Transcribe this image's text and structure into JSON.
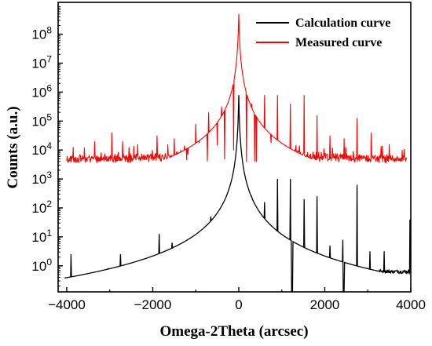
{
  "chart_data": {
    "type": "line",
    "xlabel": "Omega-2Theta (arcsec)",
    "ylabel": "Counts (a.u.)",
    "xlim": [
      -4200,
      4000
    ],
    "ylim_log10": [
      -0.9,
      9.1
    ],
    "y_scale": "log",
    "grid": false,
    "legend_position": "top-right",
    "x_ticks": [
      -4000,
      -2000,
      0,
      2000,
      4000
    ],
    "x_tick_labels": [
      "−4000",
      "−2000",
      "0",
      "2000",
      "4000"
    ],
    "y_ticks": [
      {
        "exp": 0,
        "base": "10",
        "sup": "0"
      },
      {
        "exp": 1,
        "base": "10",
        "sup": "1"
      },
      {
        "exp": 2,
        "base": "10",
        "sup": "2"
      },
      {
        "exp": 3,
        "base": "10",
        "sup": "3"
      },
      {
        "exp": 4,
        "base": "10",
        "sup": "4"
      },
      {
        "exp": 5,
        "base": "10",
        "sup": "5"
      },
      {
        "exp": 6,
        "base": "10",
        "sup": "6"
      },
      {
        "exp": 7,
        "base": "10",
        "sup": "7"
      },
      {
        "exp": 8,
        "base": "10",
        "sup": "8"
      }
    ],
    "series": [
      {
        "name": "Calculation curve",
        "color": "#000000",
        "center": 0,
        "peak_log10": 5.9,
        "baseline_log10": -0.6,
        "right_baseline_log10": -0.2,
        "spikes": [
          {
            "x": -3900,
            "log10": 0.4
          },
          {
            "x": -3050,
            "log10": -0.1
          },
          {
            "x": -2750,
            "log10": 0.4
          },
          {
            "x": -2450,
            "log10": -0.3
          },
          {
            "x": -2150,
            "log10": 0.2
          },
          {
            "x": -1850,
            "log10": 1.1
          },
          {
            "x": -1550,
            "log10": 0.8
          },
          {
            "x": -1250,
            "log10": 0.6
          },
          {
            "x": -950,
            "log10": 1.0
          },
          {
            "x": -650,
            "log10": 1.7
          },
          {
            "x": -330,
            "log10": 2.1
          },
          {
            "x": 300,
            "log10": 2.4
          },
          {
            "x": 600,
            "log10": 2.2
          },
          {
            "x": 900,
            "log10": 3.0
          },
          {
            "x": 1200,
            "log10": 3.0
          },
          {
            "x": 1520,
            "log10": 2.3
          },
          {
            "x": 1820,
            "log10": 2.4
          },
          {
            "x": 2120,
            "log10": 0.7
          },
          {
            "x": 2420,
            "log10": 0.9
          },
          {
            "x": 2750,
            "log10": 2.8
          },
          {
            "x": 3050,
            "log10": 0.5
          },
          {
            "x": 3380,
            "log10": 0.5
          },
          {
            "x": 3980,
            "log10": 1.6
          }
        ]
      },
      {
        "name": "Measured curve",
        "color": "#ff0000",
        "center": 0,
        "peak_log10": 8.7,
        "floor_log10": 3.55,
        "spikes": [
          {
            "x": -3850,
            "log10": 4.1
          },
          {
            "x": -3350,
            "log10": 4.3
          },
          {
            "x": -2950,
            "log10": 4.6
          },
          {
            "x": -2700,
            "log10": 4.3
          },
          {
            "x": -2350,
            "log10": 4.2
          },
          {
            "x": -1900,
            "log10": 4.5
          },
          {
            "x": -1500,
            "log10": 4.4
          },
          {
            "x": -1000,
            "log10": 4.9
          },
          {
            "x": -700,
            "log10": 5.3
          },
          {
            "x": -400,
            "log10": 5.5
          },
          {
            "x": 300,
            "log10": 5.6
          },
          {
            "x": 600,
            "log10": 5.9
          },
          {
            "x": 900,
            "log10": 5.9
          },
          {
            "x": 1200,
            "log10": 5.6
          },
          {
            "x": 1520,
            "log10": 5.9
          },
          {
            "x": 1820,
            "log10": 5.2
          },
          {
            "x": 2120,
            "log10": 4.5
          },
          {
            "x": 2450,
            "log10": 4.4
          },
          {
            "x": 2750,
            "log10": 5.1
          },
          {
            "x": 3080,
            "log10": 4.6
          },
          {
            "x": 3500,
            "log10": 4.2
          },
          {
            "x": 3800,
            "log10": 4.0
          }
        ]
      }
    ]
  }
}
